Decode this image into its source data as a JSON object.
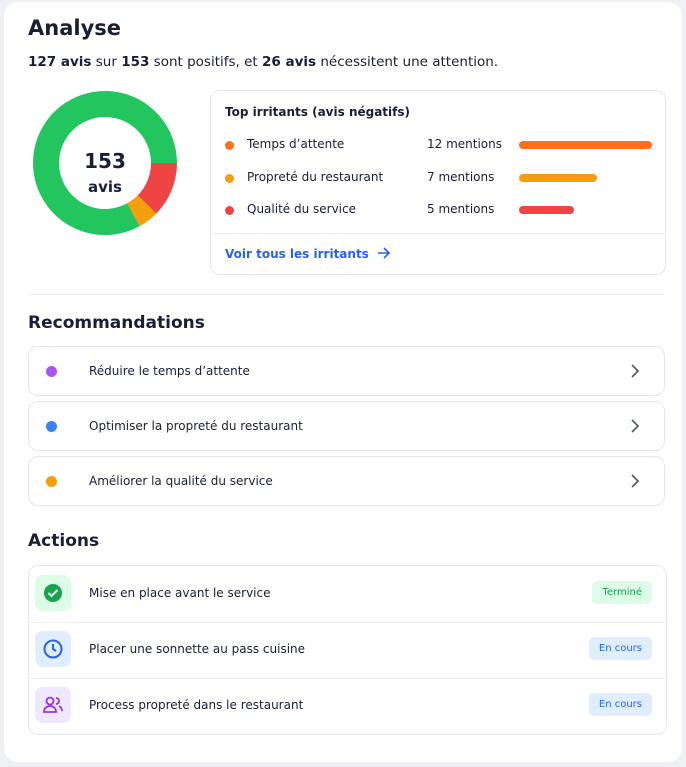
{
  "header": {
    "title": "Analyse",
    "summary": [
      {
        "text": "127 avis",
        "bold": true
      },
      {
        "text": " sur ",
        "bold": false
      },
      {
        "text": "153",
        "bold": true
      },
      {
        "text": " sont positifs, et ",
        "bold": false
      },
      {
        "text": "26 avis",
        "bold": true
      },
      {
        "text": " nécessitent une attention.",
        "bold": false
      }
    ]
  },
  "donut": {
    "center_value": "153",
    "center_label": "avis",
    "segments": [
      {
        "value": 19,
        "color": "#ef4444"
      },
      {
        "value": 7,
        "color": "#f59e0b"
      },
      {
        "value": 127,
        "color": "#22c55e"
      }
    ]
  },
  "irritants": {
    "title": "Top irritants (avis négatifs)",
    "items": [
      {
        "label": "Temps d’attente",
        "count": 12,
        "count_label": "12 mentions",
        "color": "#f97316"
      },
      {
        "label": "Propreté du restaurant",
        "count": 7,
        "count_label": "7 mentions",
        "color": "#f59e0b"
      },
      {
        "label": "Qualité du service",
        "count": 5,
        "count_label": "5 mentions",
        "color": "#ef4444"
      }
    ],
    "link": "Voir tous les irritants"
  },
  "recommendations": {
    "title": "Recommandations",
    "items": [
      {
        "label": "Réduire le temps d’attente",
        "color": "#a855f7"
      },
      {
        "label": "Optimiser la propreté du restaurant",
        "color": "#3b82f6"
      },
      {
        "label": "Améliorer la qualité du service",
        "color": "#f59e0b"
      }
    ]
  },
  "actions": {
    "title": "Actions",
    "items": [
      {
        "label": "Mise en place avant le service",
        "status": "Terminé",
        "status_color": "#16a34a",
        "status_bg": "#dcfce7"
      },
      {
        "label": "Placer une sonnette au pass cuisine",
        "status": "En cours",
        "status_color": "#2563eb",
        "status_bg": "#e0edff"
      },
      {
        "label": "Process propreté dans le restaurant",
        "status": "En cours",
        "status_color": "#2563eb",
        "status_bg": "#e0edff"
      }
    ]
  }
}
